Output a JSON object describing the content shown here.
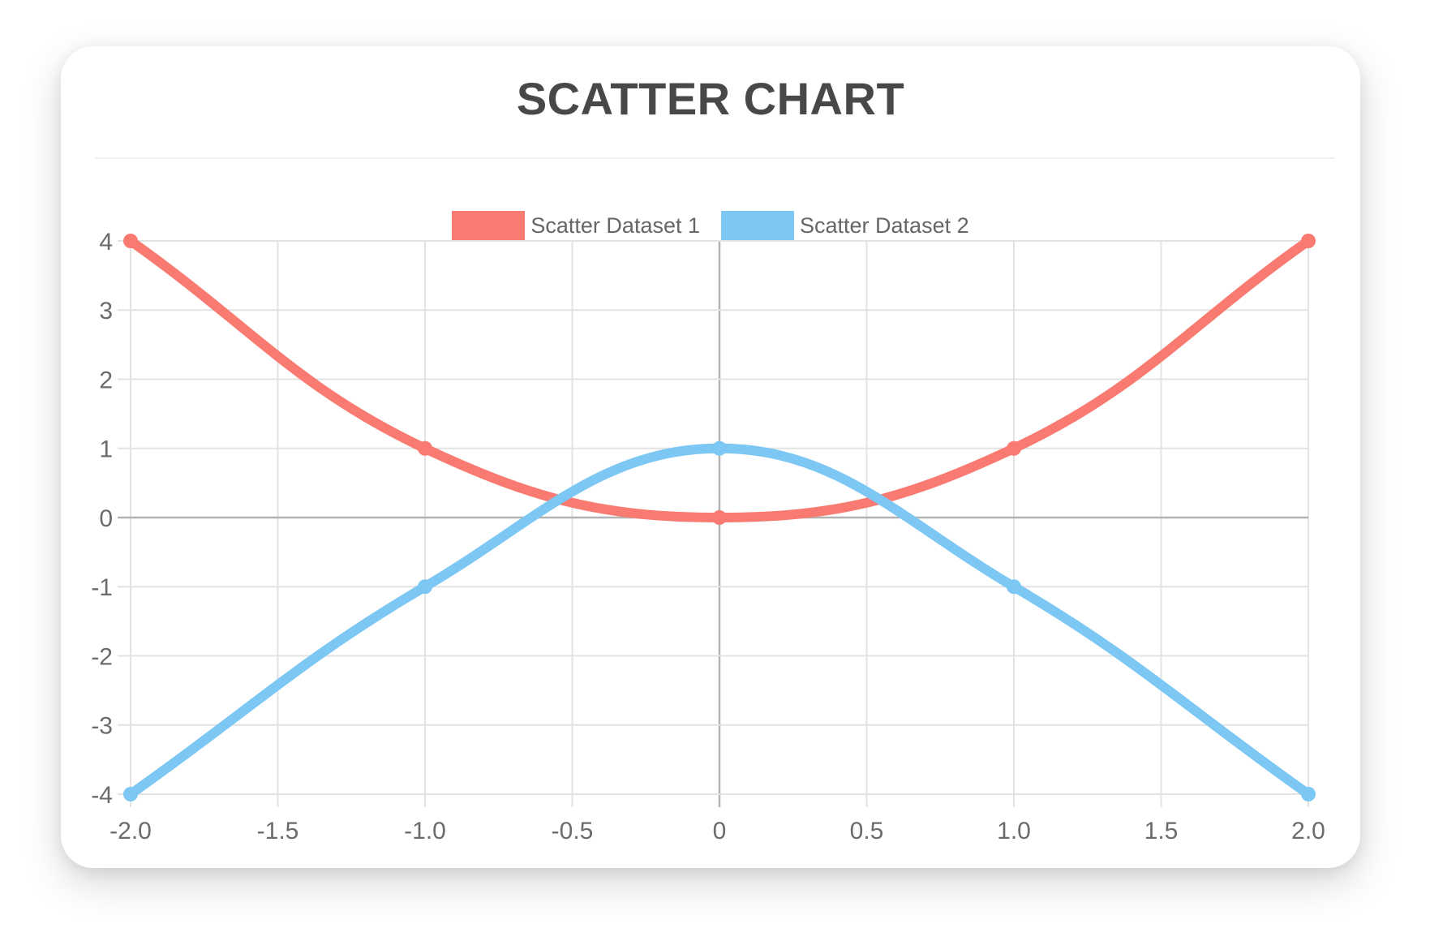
{
  "header": {
    "title": "SCATTER CHART"
  },
  "colors": {
    "title_text": "#484848",
    "legend_text": "#666666",
    "tick_text": "#6b6b6b",
    "grid": "#e3e3e3",
    "zero_line": "#b3b3b3",
    "dataset1": "#f87a70",
    "dataset2": "#7cc7f3",
    "card_background": "#ffffff"
  },
  "chart_data": {
    "type": "scatter",
    "title": "SCATTER CHART",
    "xlabel": "",
    "ylabel": "",
    "xlim": [
      -2,
      2
    ],
    "ylim": [
      -4,
      4
    ],
    "grid": true,
    "legend_position": "top",
    "x_ticks": [
      "-2.0",
      "-1.5",
      "-1.0",
      "-0.5",
      "0",
      "0.5",
      "1.0",
      "1.5",
      "2.0"
    ],
    "y_ticks": [
      "4",
      "3",
      "2",
      "1",
      "0",
      "-1",
      "-2",
      "-3",
      "-4"
    ],
    "series": [
      {
        "name": "Scatter Dataset 1",
        "color": "#f87a70",
        "points": [
          {
            "x": -2,
            "y": 4
          },
          {
            "x": -1,
            "y": 1
          },
          {
            "x": 0,
            "y": 0
          },
          {
            "x": 1,
            "y": 1
          },
          {
            "x": 2,
            "y": 4
          }
        ]
      },
      {
        "name": "Scatter Dataset 2",
        "color": "#7cc7f3",
        "points": [
          {
            "x": -2,
            "y": -4
          },
          {
            "x": -1,
            "y": -1
          },
          {
            "x": 0,
            "y": 1
          },
          {
            "x": 1,
            "y": -1
          },
          {
            "x": 2,
            "y": -4
          }
        ]
      }
    ],
    "style": {
      "line_width": 12,
      "point_radius": 9,
      "tension": 0.4,
      "grid_line_width": 2,
      "zero_line_width": 2.5,
      "tick_stub_length": 16,
      "tick_font_size": 30,
      "grid_color": "#e3e3e3",
      "zero_line_color": "#b3b3b3",
      "tick_color": "#6b6b6b"
    }
  }
}
